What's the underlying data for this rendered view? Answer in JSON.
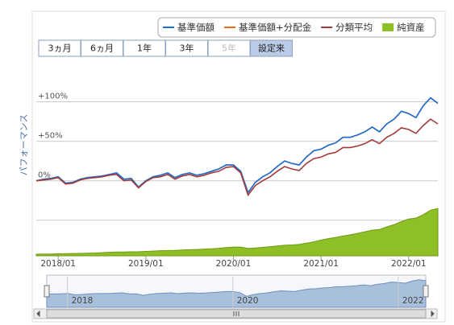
{
  "ranges": [
    "3ヵ月",
    "6ヵ月",
    "1年",
    "3年",
    "5年",
    "設定来"
  ],
  "y_axis_title": "パフォーマンス",
  "chart_data": {
    "type": "line",
    "categories": [
      "2017/10",
      "2017/11",
      "2017/12",
      "2018/01",
      "2018/02",
      "2018/03",
      "2018/04",
      "2018/05",
      "2018/06",
      "2018/07",
      "2018/08",
      "2018/09",
      "2018/10",
      "2018/11",
      "2018/12",
      "2019/01",
      "2019/02",
      "2019/03",
      "2019/04",
      "2019/05",
      "2019/06",
      "2019/07",
      "2019/08",
      "2019/09",
      "2019/10",
      "2019/11",
      "2019/12",
      "2020/01",
      "2020/02",
      "2020/03",
      "2020/04",
      "2020/05",
      "2020/06",
      "2020/07",
      "2020/08",
      "2020/09",
      "2020/10",
      "2020/11",
      "2020/12",
      "2021/01",
      "2021/02",
      "2021/03",
      "2021/04",
      "2021/05",
      "2021/06",
      "2021/07",
      "2021/08",
      "2021/09",
      "2021/10",
      "2021/11",
      "2021/12",
      "2022/01",
      "2022/02",
      "2022/03",
      "2022/04",
      "2022/05"
    ],
    "xticks": [
      "2018/01",
      "2019/01",
      "2020/01",
      "2021/01",
      "2022/01"
    ],
    "ylim": [
      -95,
      127
    ],
    "yticks": [
      {
        "value": 0,
        "label": "0%"
      },
      {
        "value": 50,
        "label": "+50%"
      },
      {
        "value": 100,
        "label": "+100%"
      }
    ],
    "ygrid": [
      -50,
      0,
      50,
      100
    ],
    "y2lim": [
      0,
      100
    ],
    "series": [
      {
        "name": "基準価額+分配金",
        "color": "#f06a10",
        "values": [
          0,
          2,
          3,
          5,
          -3,
          -2,
          2,
          4,
          5,
          6,
          8,
          10,
          2,
          3,
          -8,
          0,
          5,
          7,
          10,
          4,
          8,
          10,
          7,
          9,
          12,
          15,
          20,
          20,
          12,
          -15,
          -2,
          5,
          10,
          18,
          25,
          22,
          20,
          30,
          38,
          40,
          45,
          48,
          55,
          55,
          58,
          62,
          68,
          62,
          72,
          78,
          88,
          85,
          80,
          95,
          105,
          98
        ]
      },
      {
        "name": "基準価額",
        "color": "#1a6fd6",
        "values": [
          0,
          2,
          3,
          5,
          -3,
          -2,
          2,
          4,
          5,
          6,
          8,
          10,
          2,
          3,
          -8,
          0,
          5,
          7,
          10,
          4,
          8,
          10,
          7,
          9,
          12,
          15,
          20,
          20,
          12,
          -15,
          -2,
          5,
          10,
          18,
          25,
          22,
          20,
          30,
          38,
          40,
          45,
          48,
          55,
          55,
          58,
          62,
          68,
          62,
          72,
          78,
          88,
          85,
          80,
          95,
          105,
          98
        ]
      },
      {
        "name": "分類平均",
        "color": "#a33a3a",
        "values": [
          0,
          1,
          2,
          4,
          -4,
          -3,
          1,
          3,
          4,
          5,
          7,
          8,
          0,
          1,
          -9,
          -1,
          4,
          5,
          8,
          2,
          6,
          8,
          5,
          7,
          10,
          12,
          17,
          18,
          10,
          -18,
          -6,
          0,
          5,
          12,
          18,
          15,
          13,
          22,
          28,
          30,
          34,
          36,
          42,
          42,
          44,
          47,
          52,
          47,
          55,
          60,
          67,
          65,
          60,
          70,
          78,
          72
        ]
      },
      {
        "name": "純資産",
        "color": "#8fbf26",
        "type": "area",
        "axis": "y2",
        "values": [
          1,
          1,
          1,
          1.2,
          1.2,
          1.3,
          1.4,
          1.5,
          1.6,
          1.8,
          2,
          2.2,
          2.2,
          2.3,
          2.3,
          2.5,
          2.7,
          2.9,
          3,
          3.1,
          3.3,
          3.5,
          3.6,
          3.8,
          4,
          4.3,
          4.7,
          5,
          5,
          4.2,
          4.5,
          4.8,
          5.2,
          5.6,
          6,
          6.2,
          6.5,
          7.2,
          8,
          9,
          9.8,
          10.5,
          11.3,
          12,
          12.8,
          13.7,
          14.6,
          15,
          16.5,
          17.8,
          19.5,
          21,
          21.5,
          23.5,
          26,
          27
        ]
      }
    ]
  },
  "navigator": {
    "labels": [
      "2018",
      "2020",
      "2022"
    ]
  }
}
